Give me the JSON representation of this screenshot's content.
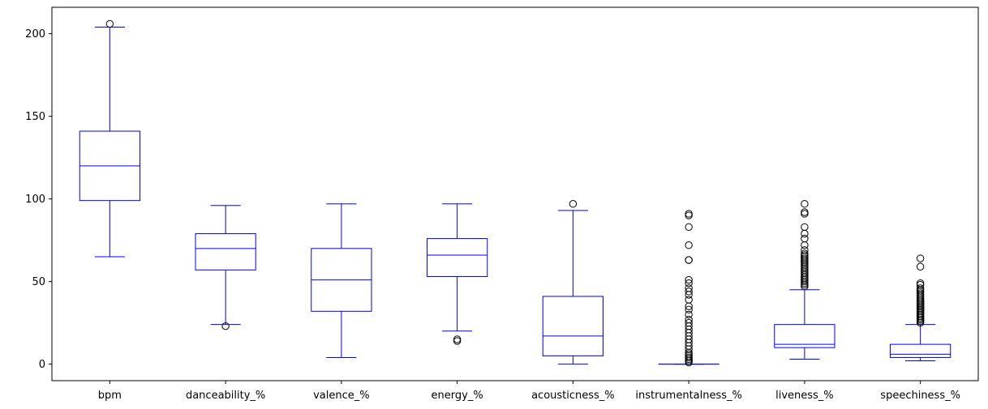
{
  "chart_data": {
    "type": "box",
    "title": "",
    "xlabel": "",
    "ylabel": "",
    "ylim": [
      -10,
      216
    ],
    "yticks": [
      0,
      50,
      100,
      150,
      200
    ],
    "box_color": "#0000ff",
    "outlier_color": "#000000",
    "grid": false,
    "categories": [
      "bpm",
      "danceability_%",
      "valence_%",
      "energy_%",
      "acousticness_%",
      "instrumentalness_%",
      "liveness_%",
      "speechiness_%"
    ],
    "boxes": [
      {
        "name": "bpm",
        "whisker_low": 65,
        "q1": 99,
        "median": 120,
        "q3": 141,
        "whisker_high": 204,
        "outliers": [
          206
        ]
      },
      {
        "name": "danceability_%",
        "whisker_low": 24,
        "q1": 57,
        "median": 70,
        "q3": 79,
        "whisker_high": 96,
        "outliers": [
          23
        ]
      },
      {
        "name": "valence_%",
        "whisker_low": 4,
        "q1": 32,
        "median": 51,
        "q3": 70,
        "whisker_high": 97,
        "outliers": []
      },
      {
        "name": "energy_%",
        "whisker_low": 20,
        "q1": 53,
        "median": 66,
        "q3": 76,
        "whisker_high": 97,
        "outliers": [
          14,
          15
        ]
      },
      {
        "name": "acousticness_%",
        "whisker_low": 0,
        "q1": 5,
        "median": 17,
        "q3": 41,
        "whisker_high": 93,
        "outliers": [
          97
        ]
      },
      {
        "name": "instrumentalness_%",
        "whisker_low": 0,
        "q1": 0,
        "median": 0,
        "q3": 0,
        "whisker_high": 0,
        "outliers": [
          1,
          2,
          2,
          3,
          3,
          4,
          5,
          6,
          7,
          9,
          11,
          13,
          15,
          17,
          19,
          21,
          23,
          25,
          27,
          30,
          33,
          35,
          39,
          42,
          44,
          46,
          49,
          51,
          63,
          63,
          72,
          83,
          90,
          91
        ]
      },
      {
        "name": "liveness_%",
        "whisker_low": 3,
        "q1": 10,
        "median": 12,
        "q3": 24,
        "whisker_high": 45,
        "outliers": [
          47,
          48,
          49,
          50,
          51,
          52,
          53,
          54,
          55,
          56,
          57,
          58,
          59,
          60,
          61,
          62,
          63,
          64,
          65,
          66,
          67,
          69,
          72,
          76,
          79,
          83,
          91,
          92,
          97
        ]
      },
      {
        "name": "speechiness_%",
        "whisker_low": 2,
        "q1": 4,
        "median": 6,
        "q3": 12,
        "whisker_high": 24,
        "outliers": [
          25,
          26,
          26,
          27,
          27,
          28,
          28,
          29,
          29,
          30,
          30,
          31,
          31,
          32,
          32,
          33,
          33,
          34,
          34,
          35,
          35,
          36,
          36,
          37,
          37,
          38,
          38,
          39,
          40,
          41,
          42,
          43,
          44,
          45,
          46,
          48,
          49,
          59,
          64
        ]
      }
    ]
  }
}
